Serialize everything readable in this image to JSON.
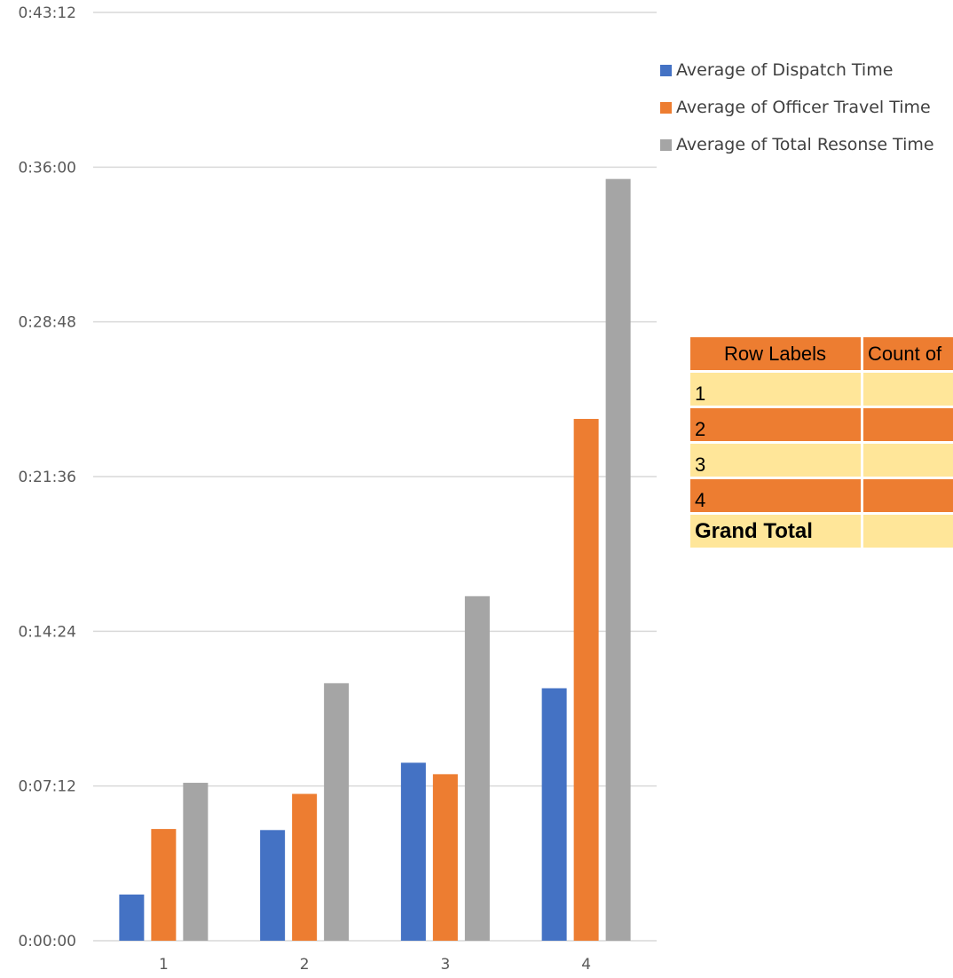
{
  "chart_data": {
    "type": "bar",
    "categories": [
      "1",
      "2",
      "3",
      "4"
    ],
    "ylim_seconds": [
      0,
      2592
    ],
    "y_ticks": [
      "0:00:00",
      "0:07:12",
      "0:14:24",
      "0:21:36",
      "0:28:48",
      "0:36:00",
      "0:43:12"
    ],
    "y_ticks_seconds": [
      0,
      432,
      864,
      1296,
      1728,
      2160,
      2592
    ],
    "grid": true,
    "legend_position": "top-right",
    "series": [
      {
        "name": "Average of Dispatch Time",
        "color": "#4472c4",
        "values_hms": [
          "0:02:09",
          "0:05:09",
          "0:08:17",
          "0:11:45"
        ],
        "values_seconds": [
          129,
          309,
          497,
          705
        ]
      },
      {
        "name": "Average of Officer Travel Time",
        "color": "#ed7d31",
        "values_hms": [
          "0:05:12",
          "0:06:50",
          "0:07:45",
          "0:24:17"
        ],
        "values_seconds": [
          312,
          410,
          465,
          1457
        ]
      },
      {
        "name": "Average of Total Resonse Time",
        "color": "#a5a5a5",
        "values_hms": [
          "0:07:21",
          "0:11:59",
          "0:16:02",
          "0:35:27"
        ],
        "values_seconds": [
          441,
          719,
          962,
          2127
        ]
      }
    ]
  },
  "pivot": {
    "header": [
      "Row Labels",
      "Count of"
    ],
    "rows": [
      "1",
      "2",
      "3",
      "4"
    ],
    "total_label": "Grand Total"
  },
  "colors": {
    "light": "#ffe699",
    "dark": "#ed7d31"
  }
}
